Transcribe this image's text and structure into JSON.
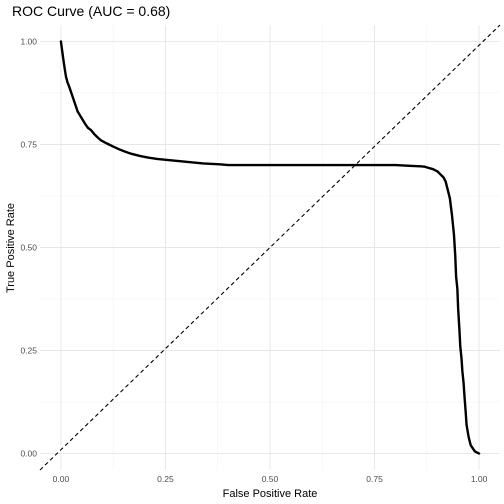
{
  "chart_data": {
    "type": "line",
    "title": "ROC Curve (AUC = 0.68)",
    "xlabel": "False Positive Rate",
    "ylabel": "True Positive Rate",
    "xlim": [
      -0.05,
      1.05
    ],
    "ylim": [
      -0.04,
      1.04
    ],
    "x_ticks": [
      "0.00",
      "0.25",
      "0.50",
      "0.75",
      "1.00"
    ],
    "y_ticks": [
      "0.00",
      "0.25",
      "0.50",
      "0.75",
      "1.00"
    ],
    "grid": true,
    "legend": "none",
    "line_color": "#000000",
    "reference_line": {
      "x": [
        -0.05,
        1.05
      ],
      "y": [
        -0.05,
        1.05
      ],
      "style": "dashed"
    },
    "series": [
      {
        "x": [
          0.0,
          0.002,
          0.004,
          0.006,
          0.009,
          0.012,
          0.016,
          0.02,
          0.025,
          0.03,
          0.035,
          0.04,
          0.046,
          0.052,
          0.058,
          0.065,
          0.072,
          0.08,
          0.088,
          0.096,
          0.105,
          0.115,
          0.125,
          0.14,
          0.155,
          0.17,
          0.19,
          0.21,
          0.23,
          0.26,
          0.3,
          0.34,
          0.38,
          0.4,
          0.5,
          0.6,
          0.7,
          0.8,
          0.84,
          0.86,
          0.87,
          0.88,
          0.89,
          0.9,
          0.905,
          0.91,
          0.915,
          0.92,
          0.925,
          0.93,
          0.935,
          0.94,
          0.943,
          0.945,
          0.948,
          0.95,
          0.953,
          0.955,
          0.958,
          0.96,
          0.963,
          0.965,
          0.968,
          0.97,
          0.975,
          0.98,
          0.99,
          1.0
        ],
        "y": [
          1.0,
          0.985,
          0.97,
          0.955,
          0.935,
          0.915,
          0.9,
          0.89,
          0.875,
          0.86,
          0.845,
          0.83,
          0.82,
          0.81,
          0.8,
          0.79,
          0.785,
          0.775,
          0.767,
          0.76,
          0.755,
          0.75,
          0.745,
          0.738,
          0.732,
          0.727,
          0.722,
          0.718,
          0.715,
          0.712,
          0.708,
          0.704,
          0.702,
          0.7,
          0.7,
          0.7,
          0.7,
          0.7,
          0.698,
          0.697,
          0.696,
          0.693,
          0.69,
          0.685,
          0.68,
          0.675,
          0.67,
          0.66,
          0.64,
          0.62,
          0.58,
          0.53,
          0.48,
          0.43,
          0.4,
          0.35,
          0.3,
          0.26,
          0.23,
          0.2,
          0.17,
          0.14,
          0.1,
          0.07,
          0.04,
          0.02,
          0.005,
          0.0
        ]
      }
    ]
  }
}
